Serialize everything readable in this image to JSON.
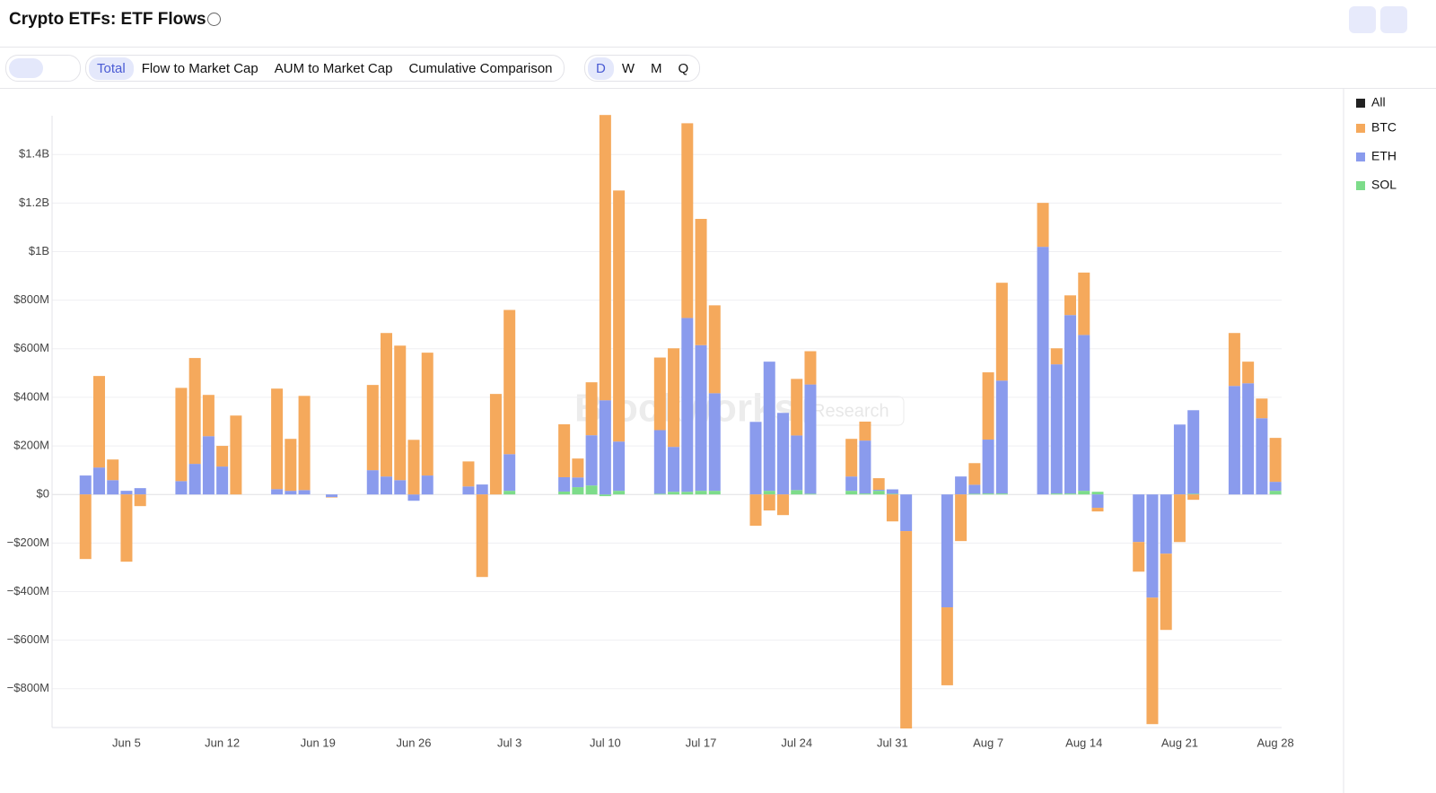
{
  "header": {
    "title": "Crypto ETFs: ETF Flows"
  },
  "toolbar": {
    "tabs": [
      "Total",
      "Flow to Market Cap",
      "AUM to Market Cap",
      "Cumulative Comparison"
    ],
    "periods": [
      "D",
      "W",
      "M",
      "Q"
    ]
  },
  "watermark": {
    "brand": "Blockworks",
    "tag": "Research"
  },
  "chart_data": {
    "type": "stacked_bar",
    "grid": true,
    "legend": "right",
    "categories": [
      null,
      null,
      null,
      null,
      "Jun 5",
      null,
      null,
      null,
      null,
      null,
      null,
      "Jun 12",
      null,
      null,
      null,
      null,
      null,
      null,
      "Jun 19",
      null,
      null,
      null,
      null,
      null,
      null,
      "Jun 26",
      null,
      null,
      null,
      null,
      null,
      null,
      "Jul 3",
      null,
      null,
      null,
      null,
      null,
      null,
      "Jul 10",
      null,
      null,
      null,
      null,
      null,
      null,
      "Jul 17",
      null,
      null,
      null,
      null,
      null,
      null,
      "Jul 24",
      null,
      null,
      null,
      null,
      null,
      null,
      "Jul 31",
      null,
      null,
      null,
      null,
      null,
      null,
      "Aug 7",
      null,
      null,
      null,
      null,
      null,
      null,
      "Aug 14",
      null,
      null,
      null,
      null,
      null,
      null,
      "Aug 21",
      null,
      null,
      null,
      null,
      null,
      null,
      "Aug 28"
    ],
    "ylim": [
      -960,
      1560
    ],
    "yticks": [
      {
        "value": 1400,
        "label": "$1.4B"
      },
      {
        "value": 1200,
        "label": "$1.2B"
      },
      {
        "value": 1000,
        "label": "$1B"
      },
      {
        "value": 800,
        "label": "$800M"
      },
      {
        "value": 600,
        "label": "$600M"
      },
      {
        "value": 400,
        "label": "$400M"
      },
      {
        "value": 200,
        "label": "$200M"
      },
      {
        "value": 0,
        "label": "$0"
      },
      {
        "value": -200,
        "label": "−$200M"
      },
      {
        "value": -400,
        "label": "−$400M"
      },
      {
        "value": -600,
        "label": "−$600M"
      },
      {
        "value": -800,
        "label": "−$800M"
      }
    ],
    "series": [
      {
        "name": "All",
        "color": "#222222"
      },
      {
        "name": "BTC",
        "color": "#f5a95c",
        "values": [
          null,
          -266,
          377,
          85,
          -277,
          -48,
          null,
          null,
          384,
          436,
          170,
          85,
          325,
          null,
          null,
          414,
          214,
          388,
          null,
          -2,
          null,
          null,
          351,
          591,
          554,
          225,
          506,
          null,
          null,
          103,
          -340,
          414,
          594,
          null,
          null,
          null,
          218,
          78,
          218,
          1175,
          1034,
          null,
          null,
          299,
          406,
          802,
          520,
          362,
          null,
          null,
          -129,
          -66,
          -85,
          233,
          137,
          null,
          null,
          155,
          78,
          48,
          -111,
          -813,
          null,
          null,
          -321,
          -192,
          89,
          277,
          403,
          null,
          null,
          181,
          66,
          81,
          257,
          -15,
          null,
          null,
          -122,
          -521,
          -314,
          -196,
          -22,
          null,
          null,
          218,
          89,
          81,
          181
        ]
      },
      {
        "name": "ETH",
        "color": "#8a9bed",
        "values": [
          null,
          78,
          111,
          59,
          15,
          26,
          null,
          null,
          55,
          126,
          240,
          115,
          0,
          null,
          null,
          22,
          15,
          18,
          null,
          -11,
          null,
          null,
          100,
          74,
          59,
          -26,
          78,
          null,
          null,
          33,
          41,
          0,
          151,
          null,
          null,
          null,
          59,
          40,
          207,
          388,
          203,
          null,
          null,
          262,
          185,
          716,
          600,
          402,
          null,
          null,
          299,
          532,
          336,
          225,
          450,
          null,
          null,
          59,
          218,
          4,
          18,
          -151,
          null,
          null,
          -465,
          74,
          37,
          222,
          465,
          null,
          null,
          1020,
          532,
          735,
          642,
          -55,
          null,
          null,
          -196,
          -425,
          -244,
          288,
          344,
          null,
          null,
          447,
          458,
          314,
          37
        ]
      },
      {
        "name": "SOL",
        "color": "#7ddc8a",
        "values": [
          null,
          0,
          0,
          0,
          0,
          0,
          null,
          null,
          0,
          0,
          0,
          0,
          0,
          null,
          null,
          0,
          0,
          0,
          null,
          0,
          null,
          null,
          0,
          0,
          0,
          0,
          0,
          null,
          null,
          0,
          0,
          0,
          15,
          null,
          null,
          null,
          12,
          30,
          37,
          -7,
          15,
          null,
          null,
          3,
          11,
          11,
          15,
          15,
          null,
          null,
          0,
          15,
          0,
          18,
          3,
          null,
          null,
          15,
          4,
          15,
          3,
          0,
          null,
          null,
          0,
          0,
          3,
          4,
          4,
          null,
          null,
          0,
          4,
          4,
          15,
          11,
          null,
          null,
          0,
          0,
          0,
          0,
          3,
          null,
          null,
          0,
          0,
          0,
          15
        ]
      }
    ]
  }
}
